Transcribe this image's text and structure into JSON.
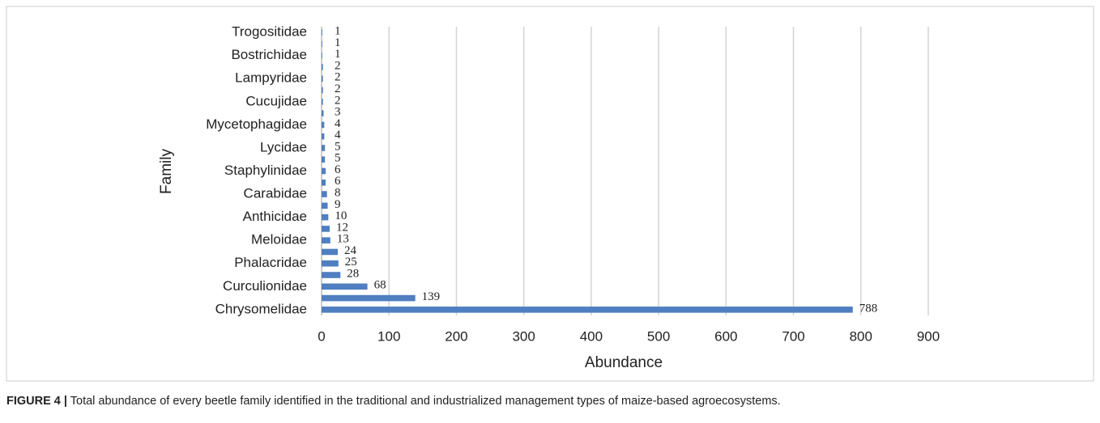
{
  "chart_data": {
    "type": "hbar",
    "x_axis_label": "Abundance",
    "y_axis_label": "Family",
    "categories": [
      "Trogositidae",
      null,
      "Bostrichidae",
      null,
      "Lampyridae",
      null,
      "Cucujidae",
      null,
      "Mycetophagidae",
      null,
      "Lycidae",
      null,
      "Staphylinidae",
      null,
      "Carabidae",
      null,
      "Anthicidae",
      null,
      "Meloidae",
      null,
      "Phalacridae",
      null,
      "Curculionidae",
      null,
      "Chrysomelidae"
    ],
    "values": [
      1,
      1,
      1,
      2,
      2,
      2,
      2,
      3,
      4,
      4,
      5,
      5,
      6,
      6,
      8,
      9,
      10,
      12,
      13,
      24,
      25,
      28,
      68,
      139,
      788
    ],
    "color": "#4f7fc0",
    "xlim": [
      0,
      900
    ],
    "xticks": [
      0,
      100,
      200,
      300,
      400,
      500,
      600,
      700,
      800,
      900
    ],
    "grid": true
  },
  "caption": {
    "label": "FIGURE 4 |",
    "text": "Total abundance of every beetle family identified in the traditional and industrialized management types of maize-based agroecosystems."
  }
}
